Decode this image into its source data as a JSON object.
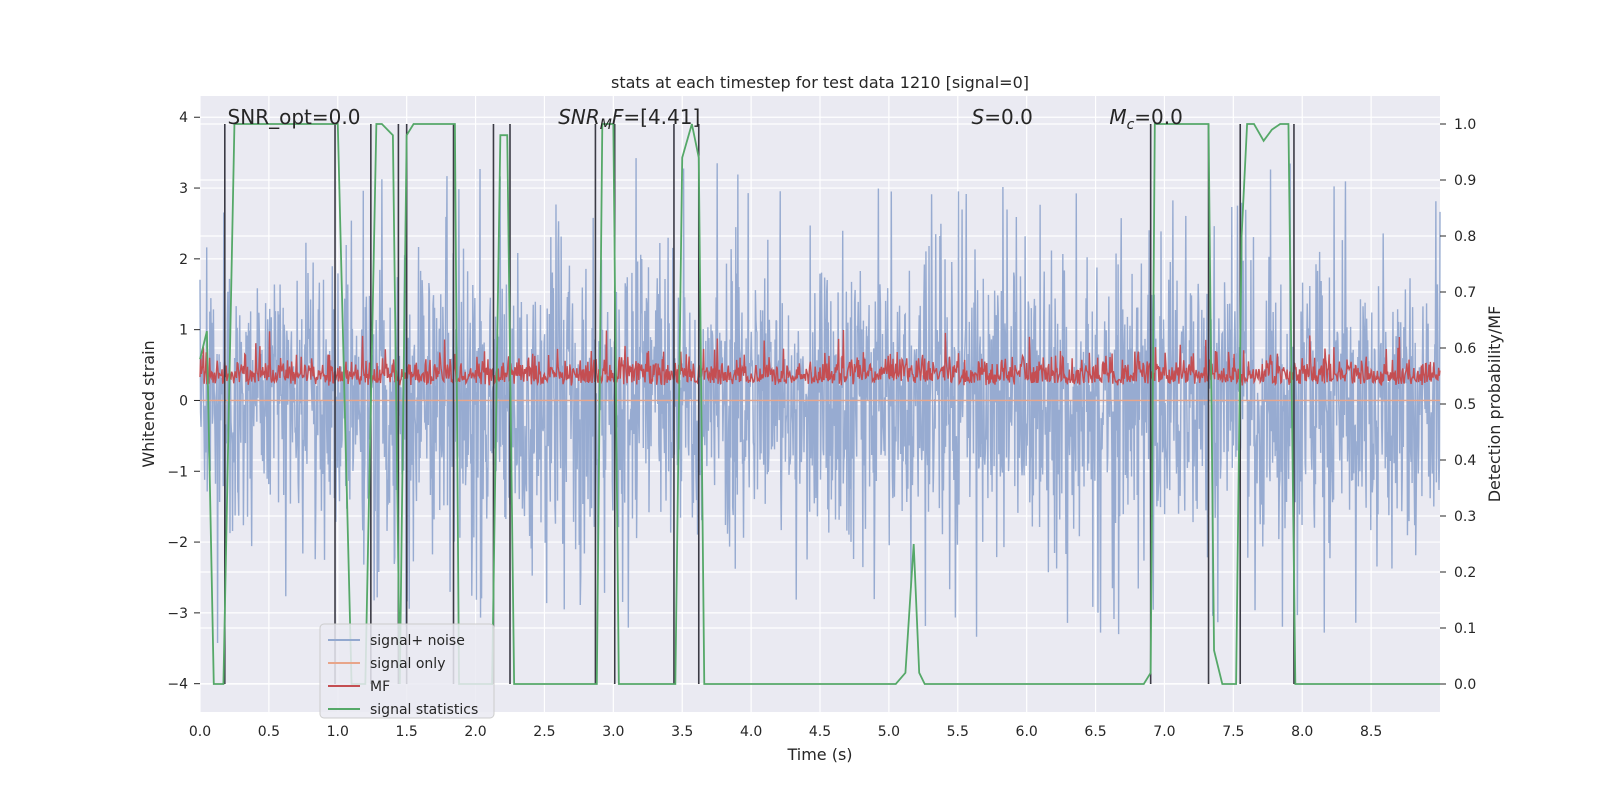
{
  "chart_data": {
    "type": "line",
    "title": "stats at each timestep for test data 1210 [signal=0]",
    "xlabel": "Time (s)",
    "ylabel_left": "Whitened strain",
    "ylabel_right": "Detection probability/MF",
    "xlim": [
      0.0,
      9.0
    ],
    "ylim_left": [
      -4.4,
      4.3
    ],
    "ylim_right": [
      -0.05,
      1.05
    ],
    "xticks": [
      0.0,
      0.5,
      1.0,
      1.5,
      2.0,
      2.5,
      3.0,
      3.5,
      4.0,
      4.5,
      5.0,
      5.5,
      6.0,
      6.5,
      7.0,
      7.5,
      8.0,
      8.5
    ],
    "xtick_labels": [
      "0.0",
      "0.5",
      "1.0",
      "1.5",
      "2.0",
      "2.5",
      "3.0",
      "3.5",
      "4.0",
      "4.5",
      "5.0",
      "5.5",
      "6.0",
      "6.5",
      "7.0",
      "7.5",
      "8.0",
      "8.5"
    ],
    "yticks_left": [
      -4,
      -3,
      -2,
      -1,
      0,
      1,
      2,
      3,
      4
    ],
    "ytick_labels_left": [
      "−4",
      "−3",
      "−2",
      "−1",
      "0",
      "1",
      "2",
      "3",
      "4"
    ],
    "yticks_right": [
      0.0,
      0.1,
      0.2,
      0.3,
      0.4,
      0.5,
      0.6,
      0.7,
      0.8,
      0.9,
      1.0
    ],
    "ytick_labels_right": [
      "0.0",
      "0.1",
      "0.2",
      "0.3",
      "0.4",
      "0.5",
      "0.6",
      "0.7",
      "0.8",
      "0.9",
      "1.0"
    ],
    "grid": true,
    "legend_position": "lower-left",
    "annotations": [
      {
        "name": "snr-opt",
        "html": "SNR_opt=0.0",
        "x": 0.2
      },
      {
        "name": "snr-mf",
        "html": "<tspan font-style='italic'>SNR</tspan><tspan font-style='italic' font-size='14' dy='5'>M</tspan><tspan dy='-5' font-style='italic'>F</tspan>=[4.41]",
        "x": 2.6
      },
      {
        "name": "s-value",
        "html": "<tspan font-style='italic'>S</tspan>=0.0",
        "x": 5.6
      },
      {
        "name": "mc-value",
        "html": "<tspan font-style='italic'>M</tspan><tspan font-style='italic' font-size='14' dy='5'>c</tspan><tspan dy='-5'>=0.0</tspan>",
        "x": 6.6
      }
    ],
    "series": [
      {
        "name": "signal+ noise",
        "color": "#92a8cf",
        "style": "noise",
        "envelope": {
          "x": [
            0.0,
            0.5,
            1.0,
            1.5,
            2.0,
            2.5,
            3.0,
            3.5,
            4.0,
            4.5,
            5.0,
            5.5,
            6.0,
            6.5,
            7.0,
            7.5,
            8.0,
            8.5,
            9.0
          ],
          "upper": [
            3.5,
            3.1,
            3.4,
            3.2,
            3.3,
            3.0,
            3.6,
            3.3,
            3.4,
            3.1,
            3.2,
            3.0,
            3.1,
            3.4,
            3.3,
            3.1,
            3.4,
            3.3,
            3.3
          ],
          "lower": [
            -3.6,
            -3.1,
            -3.4,
            -3.2,
            -3.3,
            -3.0,
            -3.2,
            -3.3,
            -3.1,
            -3.0,
            -3.5,
            -3.3,
            -4.0,
            -3.4,
            -3.3,
            -3.1,
            -3.4,
            -3.3,
            -3.3
          ]
        }
      },
      {
        "name": "signal only",
        "color": "#e8a58a",
        "style": "flat",
        "value": 0.0
      },
      {
        "name": "MF",
        "color": "#c44e52",
        "style": "mf",
        "baseline": 0.2,
        "amplitude": 0.35,
        "peak": 1.0
      },
      {
        "name": "signal statistics",
        "color": "#55a868",
        "style": "line",
        "axis": "right",
        "x": [
          0.0,
          0.05,
          0.1,
          0.13,
          0.17,
          0.25,
          0.3,
          0.6,
          0.9,
          1.0,
          1.1,
          1.2,
          1.28,
          1.32,
          1.4,
          1.45,
          1.5,
          1.55,
          1.62,
          1.7,
          1.85,
          1.88,
          1.95,
          2.05,
          2.12,
          2.18,
          2.23,
          2.28,
          2.35,
          2.5,
          2.88,
          2.92,
          3.0,
          3.04,
          3.08,
          3.2,
          3.45,
          3.5,
          3.57,
          3.62,
          3.66,
          3.7,
          4.0,
          4.5,
          5.0,
          5.05,
          5.12,
          5.18,
          5.22,
          5.26,
          5.3,
          5.5,
          6.0,
          6.5,
          6.6,
          6.7,
          6.85,
          6.9,
          6.93,
          7.0,
          7.32,
          7.36,
          7.42,
          7.48,
          7.52,
          7.56,
          7.6,
          7.65,
          7.72,
          7.78,
          7.84,
          7.9,
          7.95,
          8.0,
          8.5,
          9.0
        ],
        "y": [
          0.58,
          0.63,
          0.0,
          0.0,
          0.0,
          1.0,
          1.0,
          1.0,
          1.0,
          1.0,
          0.0,
          0.0,
          1.0,
          1.0,
          0.98,
          0.0,
          0.98,
          1.0,
          1.0,
          1.0,
          1.0,
          0.0,
          0.0,
          0.0,
          0.0,
          0.98,
          0.98,
          0.0,
          0.0,
          0.0,
          0.0,
          1.0,
          1.0,
          0.0,
          0.0,
          0.0,
          0.0,
          0.94,
          1.0,
          0.94,
          0.0,
          0.0,
          0.0,
          0.0,
          0.0,
          0.0,
          0.02,
          0.25,
          0.02,
          0.0,
          0.0,
          0.0,
          0.0,
          0.0,
          0.0,
          0.0,
          0.0,
          0.02,
          1.0,
          1.0,
          1.0,
          0.06,
          0.0,
          0.0,
          0.0,
          0.8,
          1.0,
          1.0,
          0.97,
          0.99,
          1.0,
          1.0,
          0.0,
          0.0,
          0.0,
          0.0
        ]
      }
    ],
    "vertical_markers": [
      0.18,
      0.98,
      1.24,
      1.44,
      1.5,
      1.84,
      2.13,
      2.25,
      2.87,
      3.01,
      3.44,
      3.62,
      6.9,
      7.32,
      7.55,
      7.94
    ]
  }
}
